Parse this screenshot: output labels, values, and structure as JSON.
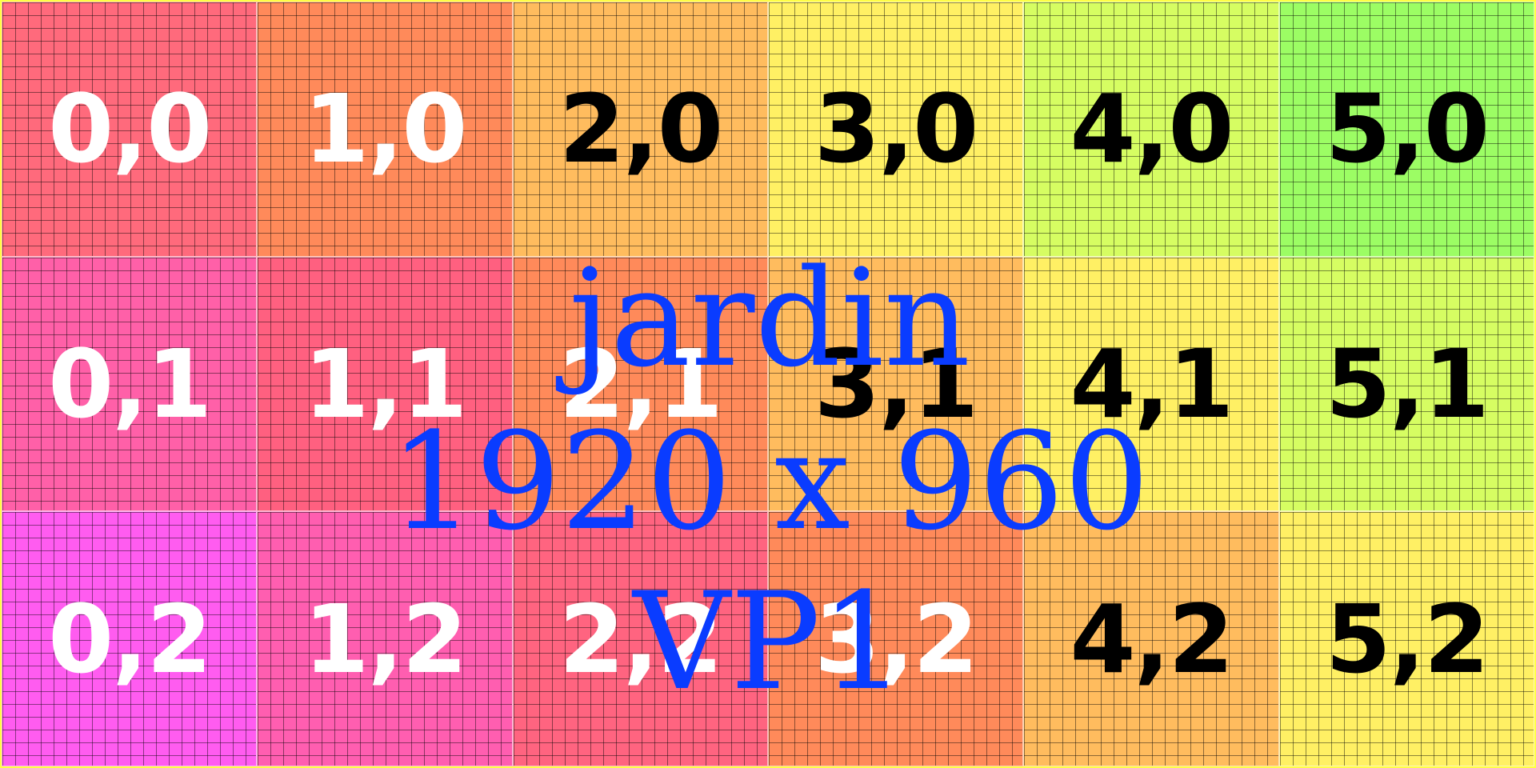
{
  "cells": [
    {
      "label": "0,0",
      "bg": "#ff6a7c",
      "fg": "#ffffff"
    },
    {
      "label": "1,0",
      "bg": "#ff8a5a",
      "fg": "#ffffff"
    },
    {
      "label": "2,0",
      "bg": "#ffbc5e",
      "fg": "#000000"
    },
    {
      "label": "3,0",
      "bg": "#fff064",
      "fg": "#000000"
    },
    {
      "label": "4,0",
      "bg": "#d6fd62",
      "fg": "#000000"
    },
    {
      "label": "5,0",
      "bg": "#9cfd64",
      "fg": "#000000"
    },
    {
      "label": "0,1",
      "bg": "#ff60a8",
      "fg": "#ffffff"
    },
    {
      "label": "1,1",
      "bg": "#ff6080",
      "fg": "#ffffff"
    },
    {
      "label": "2,1",
      "bg": "#ff8a5a",
      "fg": "#ffffff"
    },
    {
      "label": "3,1",
      "bg": "#ffbc5e",
      "fg": "#000000"
    },
    {
      "label": "4,1",
      "bg": "#fff064",
      "fg": "#000000"
    },
    {
      "label": "5,1",
      "bg": "#d6fd62",
      "fg": "#000000"
    },
    {
      "label": "0,2",
      "bg": "#ff5cf0",
      "fg": "#ffffff"
    },
    {
      "label": "1,2",
      "bg": "#ff5eb0",
      "fg": "#ffffff"
    },
    {
      "label": "2,2",
      "bg": "#ff6480",
      "fg": "#ffffff"
    },
    {
      "label": "3,2",
      "bg": "#ff8a5a",
      "fg": "#ffffff"
    },
    {
      "label": "4,2",
      "bg": "#ffbc5e",
      "fg": "#000000"
    },
    {
      "label": "5,2",
      "bg": "#fff064",
      "fg": "#000000"
    }
  ],
  "overlay": {
    "title": "jardin",
    "size": "1920 x 960",
    "viewport": "VP1",
    "color": "#0a3cff"
  }
}
